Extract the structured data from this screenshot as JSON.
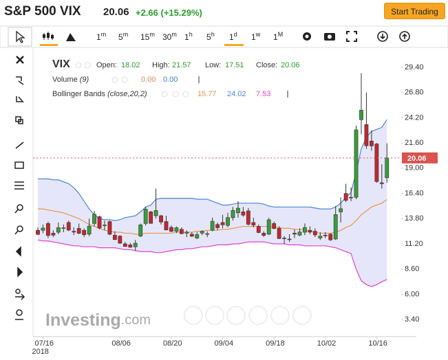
{
  "header": {
    "title": "S&P 500 VIX",
    "price": "20.06",
    "change": "+2.66 (+15.29%)",
    "button": "Start Trading"
  },
  "toolbar": {
    "timeframes": [
      {
        "num": "1",
        "unit": "m"
      },
      {
        "num": "5",
        "unit": "m"
      },
      {
        "num": "15",
        "unit": "m"
      },
      {
        "num": "30",
        "unit": "m"
      },
      {
        "num": "1",
        "unit": "h"
      },
      {
        "num": "5",
        "unit": "h"
      },
      {
        "num": "1",
        "unit": "d"
      },
      {
        "num": "1",
        "unit": "w"
      },
      {
        "num": "1",
        "unit": "M"
      }
    ]
  },
  "watermark": {
    "brand": "Investing",
    "suffix": ".com"
  },
  "chart_data": {
    "type": "candlestick",
    "legend": {
      "symbol": "VIX",
      "open_label": "Open:",
      "open": "18.02",
      "high_label": "High:",
      "high": "21.57",
      "low_label": "Low:",
      "low": "17.51",
      "close_label": "Close:",
      "close": "20.06",
      "volume_label": "Volume",
      "volume_params": "(9)",
      "volume_values": [
        "0.00",
        "0.00"
      ],
      "volume_colors": [
        "#e8845a",
        "#3b7fd9"
      ],
      "bb_label": "Bollinger Bands",
      "bb_params": "(close,20,2)",
      "bb_values": [
        "15.77",
        "24.02",
        "7.53"
      ]
    },
    "categories": [
      null,
      "07/16",
      null,
      null,
      null,
      null,
      null,
      null,
      null,
      null,
      null,
      null,
      null,
      null,
      null,
      null,
      "08/06",
      null,
      null,
      null,
      null,
      null,
      null,
      null,
      null,
      null,
      "08/20",
      null,
      null,
      null,
      null,
      null,
      null,
      null,
      null,
      null,
      "09/04",
      null,
      null,
      null,
      null,
      null,
      null,
      null,
      null,
      null,
      "09/18",
      null,
      null,
      null,
      null,
      null,
      null,
      null,
      null,
      null,
      "10/02",
      null,
      null,
      null,
      null,
      null,
      null,
      null,
      null,
      null,
      "10/16",
      null,
      null
    ],
    "x_year_label": "2018",
    "ohlc": {
      "up_color": "#3a9c3a",
      "down_color": "#c0282d",
      "open": [
        12.6,
        12.6,
        13.3,
        12.3,
        12.4,
        12.8,
        13.4,
        12.5,
        12.8,
        12.6,
        12.2,
        13.3,
        14.0,
        13.1,
        13.5,
        12.1,
        12.0,
        11.2,
        11.1,
        10.9,
        12.0,
        13.3,
        14.5,
        14.1,
        14.1,
        13.5,
        12.9,
        12.5,
        12.7,
        12.3,
        12.2,
        11.8,
        12.3,
        12.2,
        12.6,
        13.2,
        13.4,
        13.1,
        13.9,
        14.4,
        14.5,
        14.6,
        13.4,
        13.0,
        12.3,
        12.2,
        13.3,
        12.8,
        11.8,
        11.7,
        12.3,
        12.1,
        12.4,
        12.6,
        12.5,
        11.8,
        12.1,
        12.2,
        11.7,
        14.5,
        16.4,
        16.0,
        16.0,
        24.0,
        23.5,
        21.8,
        21.5,
        17.5,
        18.02
      ],
      "high": [
        12.9,
        13.2,
        13.5,
        12.6,
        13.4,
        13.2,
        13.6,
        12.9,
        13.3,
        12.8,
        13.8,
        14.6,
        14.1,
        13.6,
        13.6,
        12.5,
        12.1,
        11.4,
        11.3,
        11.6,
        13.3,
        15.0,
        14.6,
        16.9,
        14.2,
        14.1,
        13.1,
        13.0,
        12.9,
        12.6,
        12.4,
        12.4,
        12.6,
        12.5,
        13.9,
        13.4,
        14.2,
        14.4,
        15.0,
        15.6,
        15.0,
        14.9,
        13.9,
        13.2,
        12.5,
        13.9,
        13.5,
        13.0,
        12.0,
        12.2,
        12.7,
        12.8,
        13.3,
        13.0,
        12.8,
        12.4,
        12.4,
        12.3,
        15.1,
        16.0,
        17.4,
        17.0,
        23.4,
        28.8,
        26.8,
        22.9,
        21.6,
        19.4,
        21.57
      ],
      "low": [
        12.1,
        12.3,
        11.8,
        11.9,
        12.2,
        12.4,
        12.5,
        12.1,
        12.2,
        11.9,
        12.0,
        13.0,
        12.7,
        12.6,
        12.1,
        11.6,
        11.2,
        10.9,
        10.8,
        10.5,
        11.9,
        13.1,
        13.3,
        13.8,
        13.2,
        12.6,
        12.4,
        12.3,
        12.2,
        11.9,
        11.9,
        11.7,
        12.1,
        11.9,
        12.5,
        12.6,
        12.8,
        12.9,
        13.6,
        13.9,
        14.0,
        13.1,
        12.9,
        12.3,
        11.9,
        12.1,
        12.7,
        11.7,
        11.2,
        11.4,
        11.8,
        12.0,
        12.1,
        12.2,
        11.9,
        11.6,
        11.8,
        11.5,
        11.6,
        13.4,
        15.5,
        15.6,
        15.8,
        22.5,
        21.0,
        20.8,
        17.5,
        16.9,
        17.51
      ],
      "close": [
        12.18,
        12.83,
        12.06,
        12.1,
        12.87,
        12.86,
        12.62,
        12.41,
        12.29,
        12.14,
        13.03,
        14.26,
        12.83,
        13.15,
        12.19,
        11.64,
        11.27,
        10.93,
        10.85,
        11.27,
        13.16,
        14.78,
        13.31,
        14.64,
        13.45,
        12.64,
        12.49,
        12.86,
        12.25,
        12.41,
        11.99,
        12.16,
        12.5,
        12.25,
        13.53,
        12.86,
        13.16,
        13.91,
        14.65,
        14.88,
        14.16,
        13.22,
        13.14,
        12.37,
        12.07,
        13.68,
        12.79,
        11.75,
        11.8,
        11.68,
        12.2,
        12.42,
        12.89,
        12.41,
        12.12,
        12.0,
        12.05,
        11.61,
        14.22,
        14.82,
        15.69,
        15.95,
        22.96,
        24.98,
        21.31,
        21.3,
        17.62,
        17.4,
        20.06
      ]
    },
    "bollinger": {
      "fill": "#e6e6fa",
      "middle": {
        "color": "#e8954a",
        "values": [
          14.8,
          14.8,
          14.7,
          14.6,
          14.5,
          14.4,
          14.2,
          14.0,
          13.8,
          13.5,
          13.2,
          13.0,
          12.8,
          12.6,
          12.5,
          12.4,
          12.4,
          12.3,
          12.3,
          12.2,
          12.2,
          12.3,
          12.3,
          12.3,
          12.3,
          12.3,
          12.3,
          12.4,
          12.4,
          12.4,
          12.4,
          12.5,
          12.5,
          12.6,
          12.6,
          12.6,
          12.7,
          12.7,
          12.8,
          12.9,
          13.0,
          13.0,
          13.0,
          13.0,
          13.0,
          13.0,
          12.9,
          12.9,
          12.8,
          12.8,
          12.7,
          12.7,
          12.6,
          12.5,
          12.4,
          12.3,
          12.3,
          12.3,
          12.4,
          12.6,
          12.9,
          13.1,
          13.6,
          14.2,
          14.6,
          15.0,
          15.2,
          15.4,
          15.77
        ]
      },
      "upper": {
        "color": "#4a86d4",
        "values": [
          17.9,
          17.9,
          17.9,
          17.8,
          17.8,
          17.6,
          17.4,
          17.0,
          16.4,
          15.6,
          14.8,
          14.2,
          13.8,
          13.7,
          13.7,
          13.6,
          13.7,
          13.9,
          14.0,
          14.1,
          14.5,
          15.0,
          15.2,
          15.8,
          15.9,
          15.9,
          15.9,
          15.9,
          15.9,
          15.9,
          15.9,
          15.8,
          15.8,
          15.8,
          15.6,
          15.4,
          15.2,
          15.2,
          15.3,
          15.4,
          15.4,
          15.4,
          15.4,
          15.4,
          15.3,
          15.1,
          15.0,
          15.0,
          15.0,
          15.0,
          15.0,
          15.0,
          15.0,
          15.0,
          14.9,
          14.8,
          14.8,
          14.8,
          15.0,
          15.4,
          16.0,
          16.5,
          18.6,
          21.0,
          22.2,
          22.8,
          23.0,
          23.2,
          24.02
        ]
      },
      "lower": {
        "color": "#e040d0",
        "values": [
          11.6,
          11.5,
          11.5,
          11.4,
          11.3,
          11.2,
          11.1,
          11.0,
          11.0,
          10.9,
          10.9,
          10.9,
          10.8,
          10.8,
          10.8,
          10.8,
          10.7,
          10.6,
          10.6,
          10.5,
          10.4,
          10.4,
          10.4,
          10.3,
          10.3,
          10.4,
          10.5,
          10.6,
          10.6,
          10.7,
          10.7,
          10.8,
          10.9,
          10.9,
          11.0,
          11.1,
          11.1,
          11.1,
          11.2,
          11.2,
          11.3,
          11.4,
          11.4,
          11.4,
          11.4,
          11.3,
          11.2,
          11.2,
          11.2,
          11.1,
          11.1,
          11.1,
          11.0,
          11.0,
          11.0,
          11.0,
          11.0,
          10.9,
          10.8,
          10.6,
          10.4,
          10.2,
          8.6,
          7.4,
          7.0,
          6.8,
          7.0,
          7.3,
          7.53
        ]
      }
    },
    "price_line": 20.06,
    "price_line_color": "#d9534f",
    "ylim": [
      1.78,
      31.38
    ],
    "yticks": [
      {
        "value": 29.4,
        "label": "29.40"
      },
      {
        "value": 26.8,
        "label": "26.80"
      },
      {
        "value": 24.2,
        "label": "24.20"
      },
      {
        "value": 21.6,
        "label": "21.60"
      },
      {
        "value": 19,
        "label": "19.00"
      },
      {
        "value": 16.4,
        "label": "16.40"
      },
      {
        "value": 13.8,
        "label": "13.80"
      },
      {
        "value": 11.2,
        "label": "11.20"
      },
      {
        "value": 8.6,
        "label": "8.60"
      },
      {
        "value": 6,
        "label": "6.00"
      },
      {
        "value": 3.4,
        "label": "3.40"
      }
    ]
  }
}
